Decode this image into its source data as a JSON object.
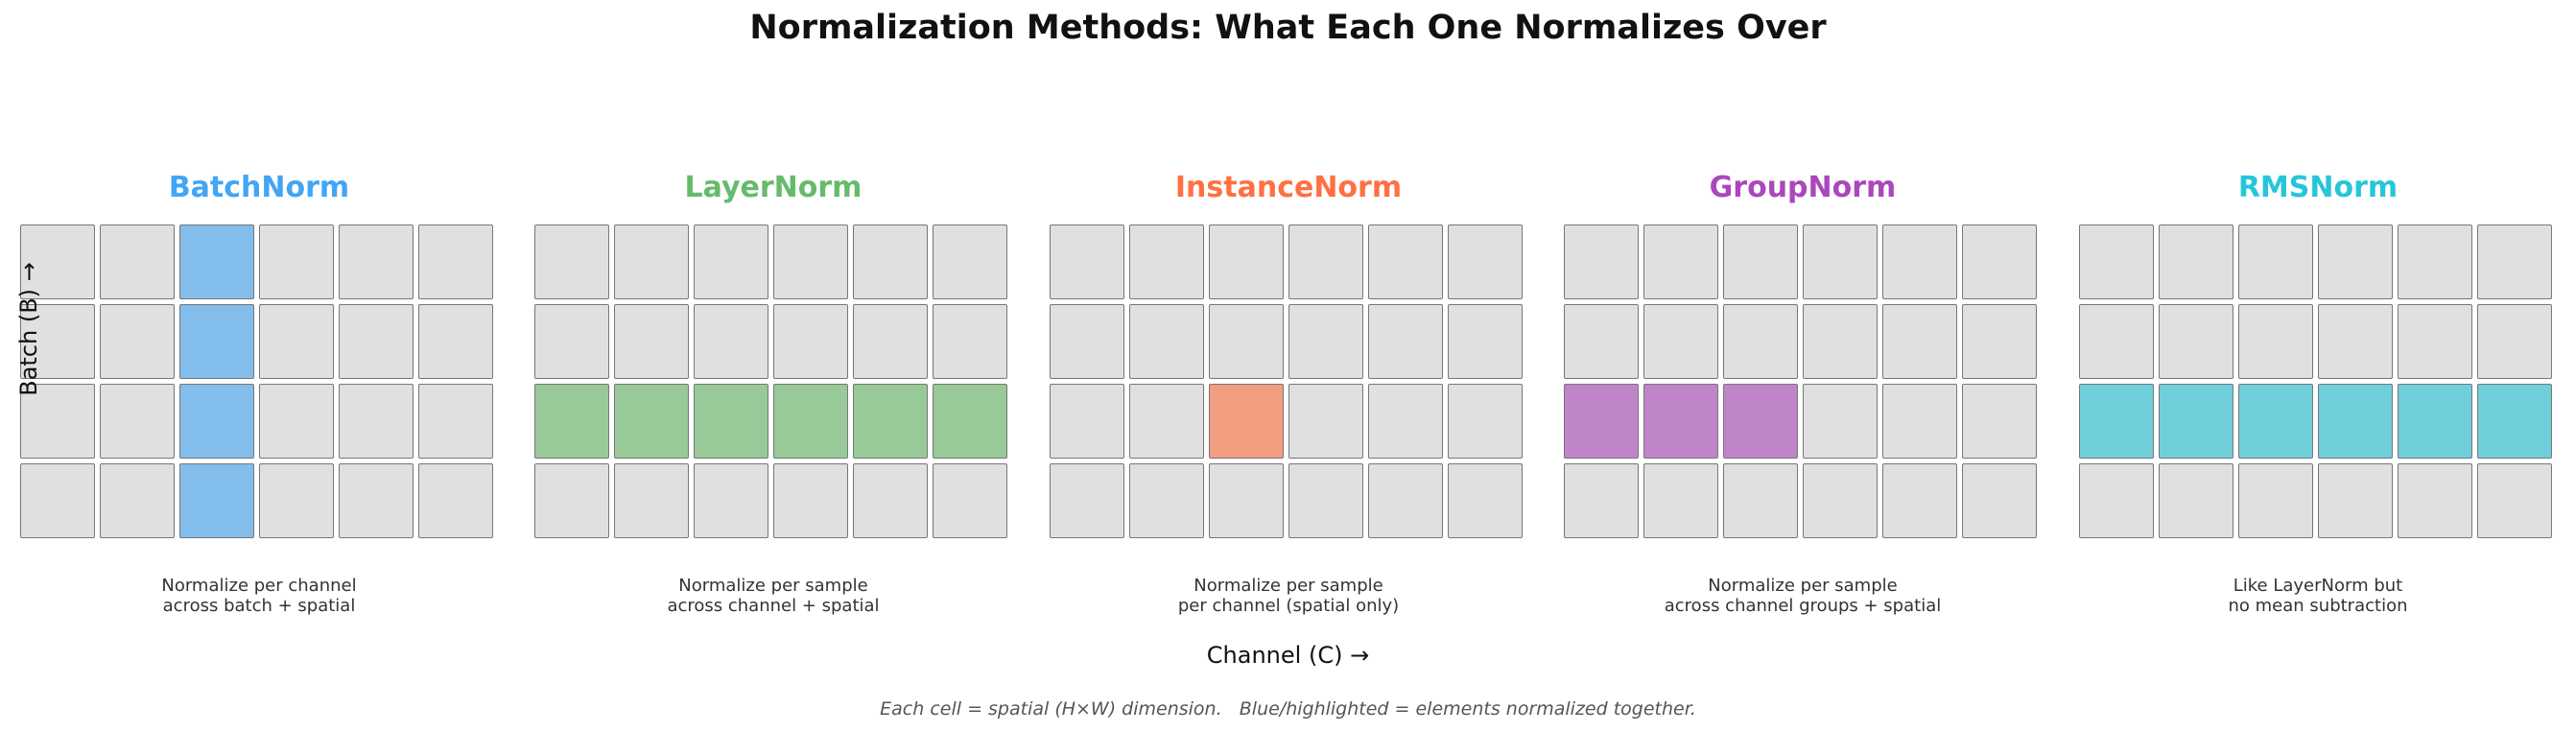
{
  "title": "Normalization Methods: What Each One Normalizes Over",
  "y_axis_label": "Batch (B) →",
  "x_axis_label": "Channel (C) →",
  "footnote": "Each cell = spatial (H×W) dimension.   Blue/highlighted = elements normalized together.",
  "grid": {
    "rows": 4,
    "cols": 6,
    "base_color": "#e0e0e0",
    "border_color": "#777777"
  },
  "panels": [
    {
      "name": "BatchNorm",
      "color": "#42a5f5",
      "fill": "#83bdeb",
      "caption": [
        "Normalize per channel",
        "across batch + spatial"
      ],
      "highlight": [
        [
          0,
          2
        ],
        [
          1,
          2
        ],
        [
          2,
          2
        ],
        [
          3,
          2
        ]
      ]
    },
    {
      "name": "LayerNorm",
      "color": "#66bb6a",
      "fill": "#98c998",
      "caption": [
        "Normalize per sample",
        "across channel + spatial"
      ],
      "highlight": [
        [
          2,
          0
        ],
        [
          2,
          1
        ],
        [
          2,
          2
        ],
        [
          2,
          3
        ],
        [
          2,
          4
        ],
        [
          2,
          5
        ]
      ]
    },
    {
      "name": "InstanceNorm",
      "color": "#ff7043",
      "fill": "#f19d80",
      "caption": [
        "Normalize per sample",
        "per channel (spatial only)"
      ],
      "highlight": [
        [
          2,
          2
        ]
      ]
    },
    {
      "name": "GroupNorm",
      "color": "#ab47bc",
      "fill": "#c084c9",
      "caption": [
        "Normalize per sample",
        "across channel groups + spatial"
      ],
      "highlight": [
        [
          2,
          0
        ],
        [
          2,
          1
        ],
        [
          2,
          2
        ]
      ]
    },
    {
      "name": "RMSNorm",
      "color": "#26c6da",
      "fill": "#6fcfdb",
      "caption": [
        "Like LayerNorm but",
        "no mean subtraction"
      ],
      "highlight": [
        [
          2,
          0
        ],
        [
          2,
          1
        ],
        [
          2,
          2
        ],
        [
          2,
          3
        ],
        [
          2,
          4
        ],
        [
          2,
          5
        ]
      ]
    }
  ]
}
